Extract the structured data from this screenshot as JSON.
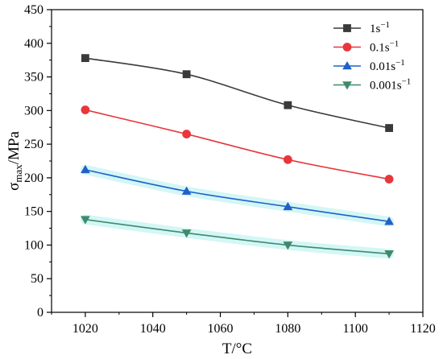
{
  "chart_data": {
    "type": "line",
    "xlabel": "T/°C",
    "ylabel": {
      "base": "σ",
      "sub": "max",
      "rest": "/MPa"
    },
    "xlim": [
      1010,
      1120
    ],
    "ylim": [
      0,
      450
    ],
    "x_ticks": [
      1020,
      1040,
      1060,
      1080,
      1100,
      1120
    ],
    "y_ticks": [
      0,
      50,
      100,
      150,
      200,
      250,
      300,
      350,
      400,
      450
    ],
    "x": [
      1020,
      1050,
      1080,
      1110
    ],
    "legend_position": "top-right",
    "grid": false,
    "series": [
      {
        "name": "1s",
        "sup": "−1",
        "color": "#3a3a3a",
        "marker": "square",
        "values": [
          378,
          354,
          308,
          274
        ]
      },
      {
        "name": "0.1s",
        "sup": "−1",
        "color": "#e8363c",
        "marker": "circle",
        "values": [
          301,
          265,
          227,
          198
        ]
      },
      {
        "name": "0.01s",
        "sup": "−1",
        "color": "#2060c8",
        "marker": "triangle-up",
        "values": [
          212,
          180,
          157,
          135
        ]
      },
      {
        "name": "0.001s",
        "sup": "−1",
        "color": "#3f8a6a",
        "marker": "triangle-down",
        "values": [
          138,
          118,
          100,
          87
        ]
      }
    ]
  }
}
